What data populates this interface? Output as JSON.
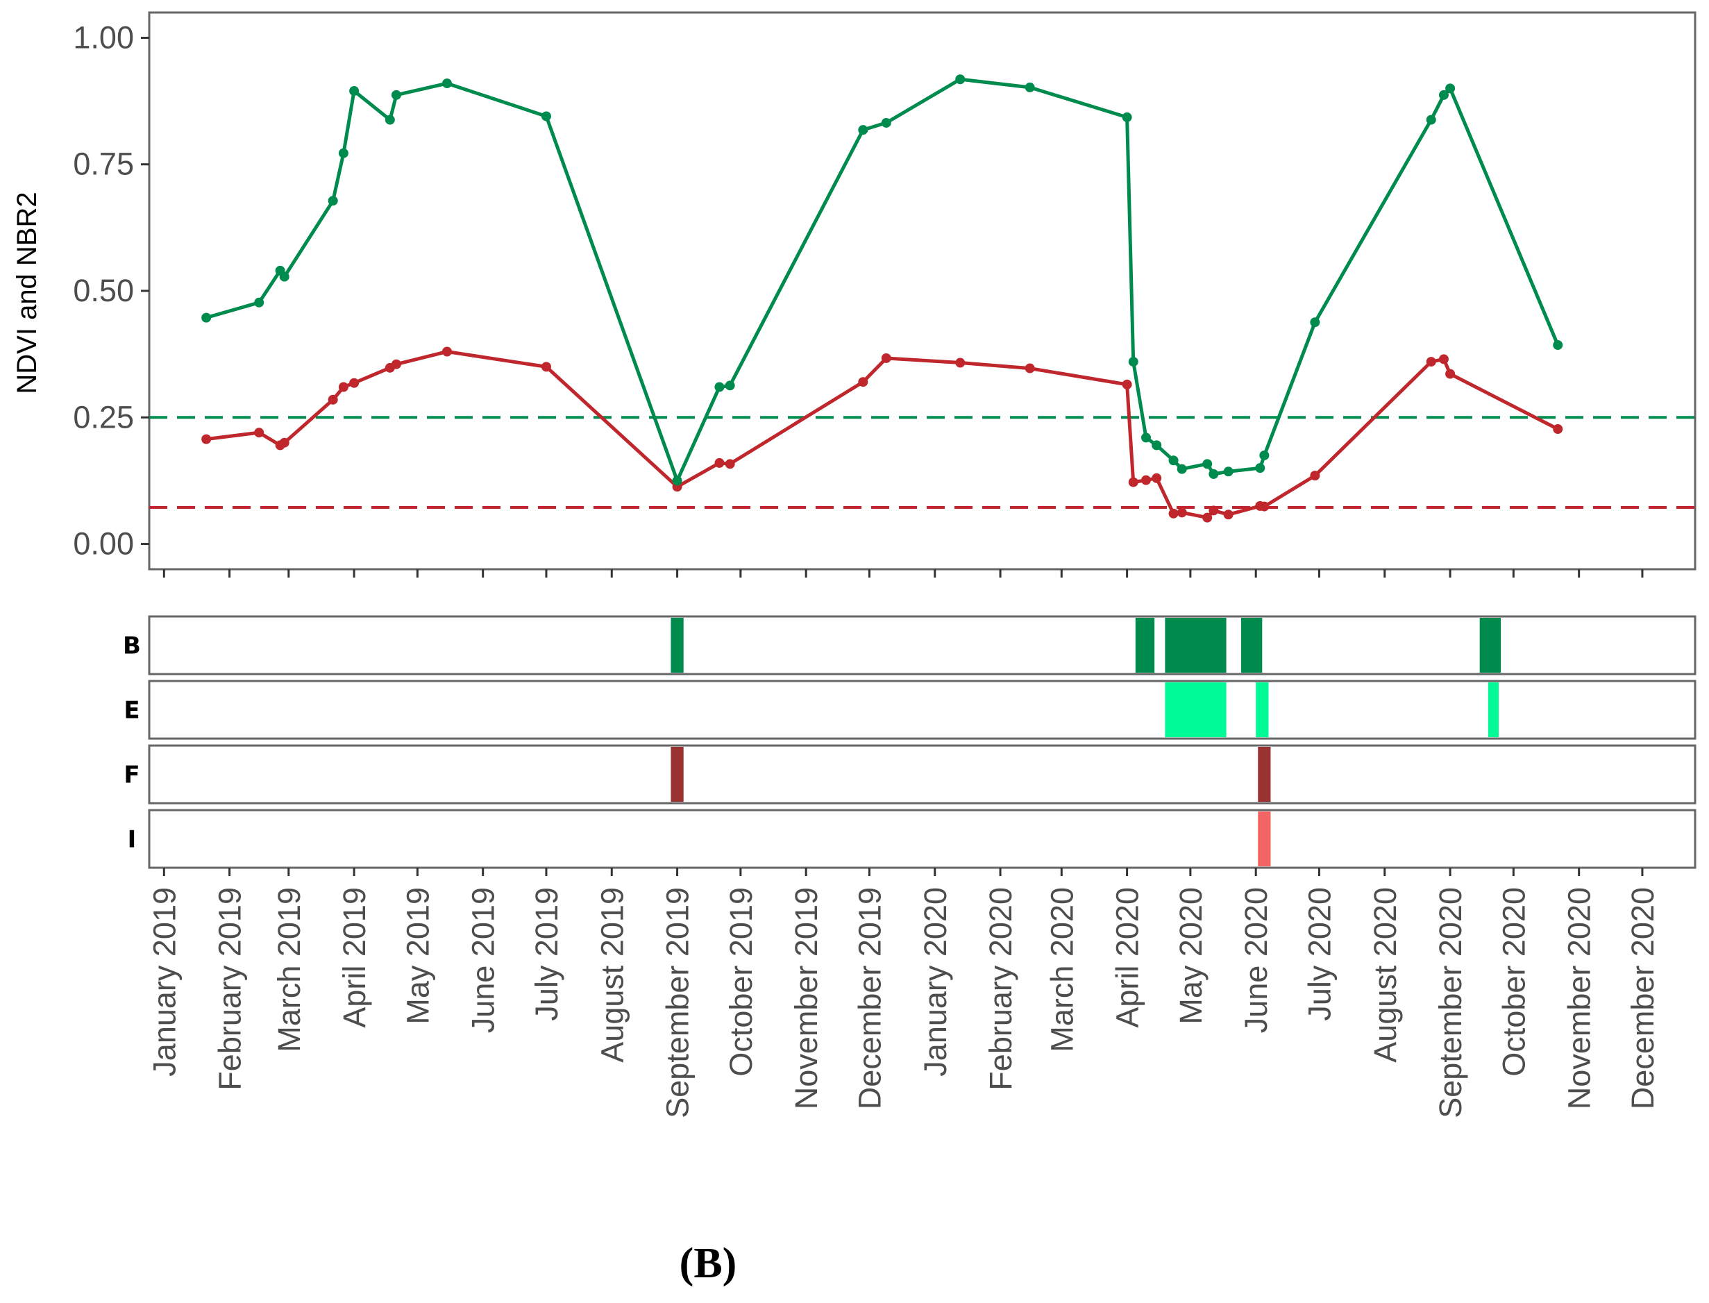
{
  "chart_data": {
    "type": "line",
    "caption_paren_left": "(",
    "caption_letter": "B",
    "caption_paren_right": ")",
    "ylabel": "NDVI and NBR2",
    "ylim": [
      -0.05,
      1.05
    ],
    "yticks": [
      {
        "value": 0.0,
        "label": "0.00"
      },
      {
        "value": 0.25,
        "label": "0.25"
      },
      {
        "value": 0.5,
        "label": "0.50"
      },
      {
        "value": 0.75,
        "label": "0.75"
      },
      {
        "value": 1.0,
        "label": "1.00"
      }
    ],
    "xlim": [
      -7,
      725
    ],
    "xticks": [
      {
        "value": 0,
        "label": "January 2019"
      },
      {
        "value": 31,
        "label": "February 2019"
      },
      {
        "value": 59,
        "label": "March 2019"
      },
      {
        "value": 90,
        "label": "April 2019"
      },
      {
        "value": 120,
        "label": "May 2019"
      },
      {
        "value": 151,
        "label": "June 2019"
      },
      {
        "value": 181,
        "label": "July 2019"
      },
      {
        "value": 212,
        "label": "August 2019"
      },
      {
        "value": 243,
        "label": "September 2019"
      },
      {
        "value": 273,
        "label": "October 2019"
      },
      {
        "value": 304,
        "label": "November 2019"
      },
      {
        "value": 334,
        "label": "December 2019"
      },
      {
        "value": 365,
        "label": "January 2020"
      },
      {
        "value": 396,
        "label": "February 2020"
      },
      {
        "value": 425,
        "label": "March 2020"
      },
      {
        "value": 456,
        "label": "April 2020"
      },
      {
        "value": 486,
        "label": "May 2020"
      },
      {
        "value": 517,
        "label": "June 2020"
      },
      {
        "value": 547,
        "label": "July 2020"
      },
      {
        "value": 578,
        "label": "August 2020"
      },
      {
        "value": 609,
        "label": "September 2020"
      },
      {
        "value": 639,
        "label": "October 2020"
      },
      {
        "value": 670,
        "label": "November 2020"
      },
      {
        "value": 700,
        "label": "December 2020"
      }
    ],
    "x_unit": "days since January 1, 2019",
    "series": [
      {
        "name": "NDVI",
        "color": "#008b4e",
        "x": [
          20,
          45,
          55,
          57,
          80,
          85,
          90,
          107,
          110,
          134,
          181,
          243,
          263,
          268,
          331,
          342,
          377,
          410,
          456,
          459,
          465,
          470,
          478,
          482,
          494,
          497,
          504,
          519,
          521,
          545,
          600,
          606,
          609,
          660
        ],
        "y": [
          0.447,
          0.477,
          0.54,
          0.528,
          0.678,
          0.772,
          0.895,
          0.838,
          0.887,
          0.91,
          0.845,
          0.125,
          0.31,
          0.313,
          0.818,
          0.832,
          0.918,
          0.902,
          0.843,
          0.36,
          0.21,
          0.195,
          0.165,
          0.148,
          0.158,
          0.138,
          0.143,
          0.15,
          0.175,
          0.438,
          0.838,
          0.887,
          0.9,
          0.393
        ]
      },
      {
        "name": "NBR2",
        "color": "#c0272d",
        "x": [
          20,
          45,
          55,
          57,
          80,
          85,
          90,
          107,
          110,
          134,
          181,
          243,
          263,
          268,
          331,
          342,
          377,
          410,
          456,
          459,
          465,
          470,
          478,
          482,
          494,
          497,
          504,
          519,
          521,
          545,
          600,
          606,
          609,
          660
        ],
        "y": [
          0.207,
          0.22,
          0.195,
          0.2,
          0.285,
          0.31,
          0.318,
          0.348,
          0.355,
          0.38,
          0.35,
          0.113,
          0.16,
          0.158,
          0.32,
          0.367,
          0.358,
          0.347,
          0.315,
          0.122,
          0.126,
          0.13,
          0.06,
          0.062,
          0.052,
          0.066,
          0.058,
          0.075,
          0.074,
          0.135,
          0.36,
          0.365,
          0.336,
          0.227
        ]
      }
    ],
    "reference_lines": [
      {
        "name": "NDVI threshold",
        "value": 0.25,
        "color": "#008b4e",
        "style": "dashed"
      },
      {
        "name": "NBR2 threshold",
        "value": 0.072,
        "color": "#c0272d",
        "style": "dashed"
      }
    ],
    "strips": [
      {
        "label": "B",
        "color": "#008b4e",
        "intervals": [
          [
            240,
            246
          ],
          [
            460,
            469
          ],
          [
            474,
            503
          ],
          [
            510,
            520
          ],
          [
            623,
            633
          ]
        ]
      },
      {
        "label": "E",
        "color": "#00fa96",
        "intervals": [
          [
            474,
            503
          ],
          [
            517,
            523
          ],
          [
            627,
            632
          ]
        ]
      },
      {
        "label": "F",
        "color": "#9b3232",
        "intervals": [
          [
            240,
            246
          ],
          [
            518,
            524
          ]
        ]
      },
      {
        "label": "I",
        "color": "#f46464",
        "intervals": [
          [
            518,
            524
          ]
        ]
      }
    ]
  }
}
